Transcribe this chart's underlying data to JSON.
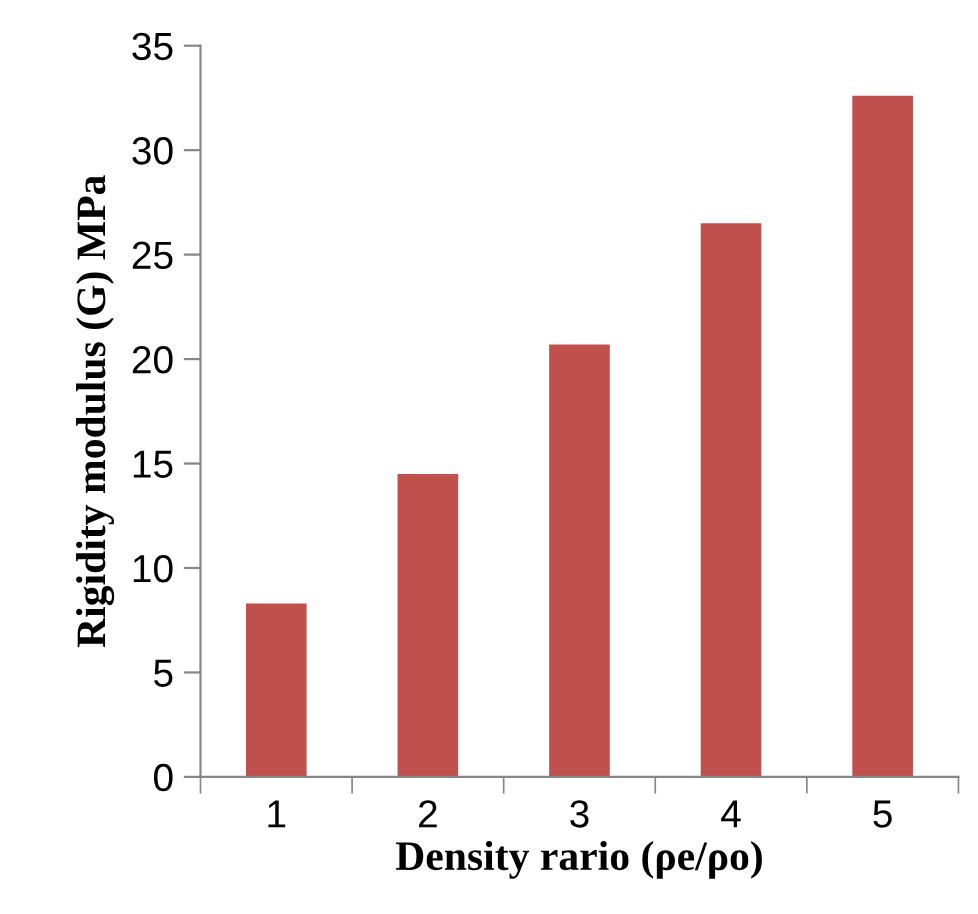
{
  "chart_data": {
    "type": "bar",
    "xlabel": "Density rario (ρe/ρo)",
    "ylabel": "Rigidity modulus (G) MPa",
    "categories": [
      "1",
      "2",
      "3",
      "4",
      "5"
    ],
    "values": [
      8.3,
      14.5,
      20.7,
      26.5,
      32.6
    ],
    "color": "#c0504d",
    "ylim": [
      0,
      35
    ],
    "yticks": [
      0,
      5,
      10,
      15,
      20,
      25,
      30,
      35
    ],
    "grid": false
  }
}
